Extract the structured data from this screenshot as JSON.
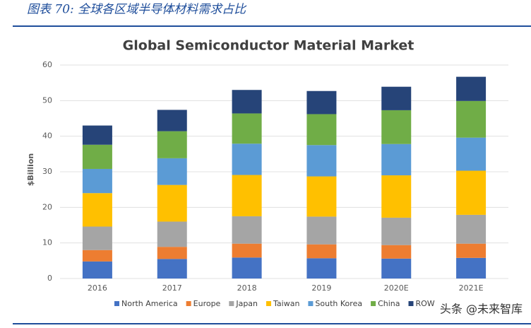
{
  "caption": "图表 70: 全球各区域半导体材料需求占比",
  "watermark": "头条 @未来智库",
  "chart_data": {
    "type": "stacked-bar",
    "title": "Global Semiconductor Material Market",
    "y_label": "$Billion",
    "categories": [
      "2016",
      "2017",
      "2018",
      "2019",
      "2020E",
      "2021E"
    ],
    "series": [
      {
        "name": "North America",
        "color": "#4472c4",
        "values": [
          4.8,
          5.5,
          5.9,
          5.7,
          5.6,
          5.8
        ]
      },
      {
        "name": "Europe",
        "color": "#ed7d31",
        "values": [
          3.2,
          3.4,
          3.9,
          3.9,
          3.8,
          4.0
        ]
      },
      {
        "name": "Japan",
        "color": "#a5a5a5",
        "values": [
          6.6,
          7.1,
          7.7,
          7.8,
          7.7,
          8.1
        ]
      },
      {
        "name": "Taiwan",
        "color": "#ffc000",
        "values": [
          9.4,
          10.3,
          11.6,
          11.3,
          11.9,
          12.4
        ]
      },
      {
        "name": "South Korea",
        "color": "#5b9bd5",
        "values": [
          6.8,
          7.5,
          8.8,
          8.8,
          8.8,
          9.3
        ]
      },
      {
        "name": "China",
        "color": "#70ad47",
        "values": [
          6.8,
          7.6,
          8.5,
          8.7,
          9.5,
          10.3
        ]
      },
      {
        "name": "ROW",
        "color": "#264478",
        "values": [
          5.4,
          6.0,
          6.6,
          6.5,
          6.6,
          6.8
        ]
      }
    ],
    "ylim": [
      0,
      60
    ],
    "yticks": [
      0,
      10,
      20,
      30,
      40,
      50,
      60
    ],
    "grid": true
  }
}
